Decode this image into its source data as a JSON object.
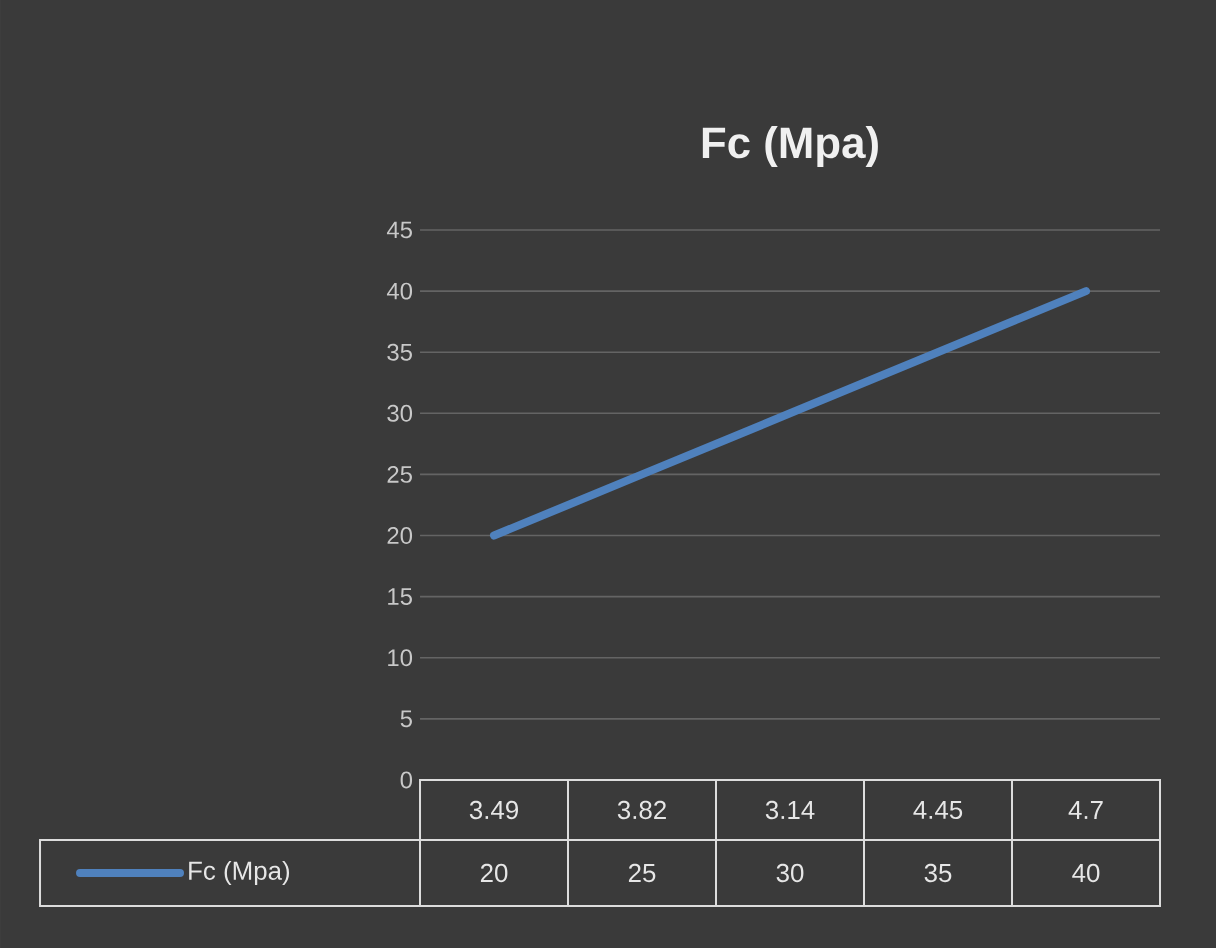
{
  "chart_data": {
    "type": "line",
    "title": "Fc (Mpa)",
    "categories": [
      "3.49",
      "3.82",
      "3.14",
      "4.45",
      "4.7"
    ],
    "series": [
      {
        "name": "Fc (Mpa)",
        "color": "#4f81bd",
        "values": [
          20,
          25,
          30,
          35,
          40
        ]
      }
    ],
    "ylim": [
      0,
      45
    ],
    "yticks": [
      0,
      5,
      10,
      15,
      20,
      25,
      30,
      35,
      40,
      45
    ],
    "grid": "y",
    "legend": "bottom",
    "data_labels": true,
    "marker": "none",
    "line_style": "solid"
  }
}
